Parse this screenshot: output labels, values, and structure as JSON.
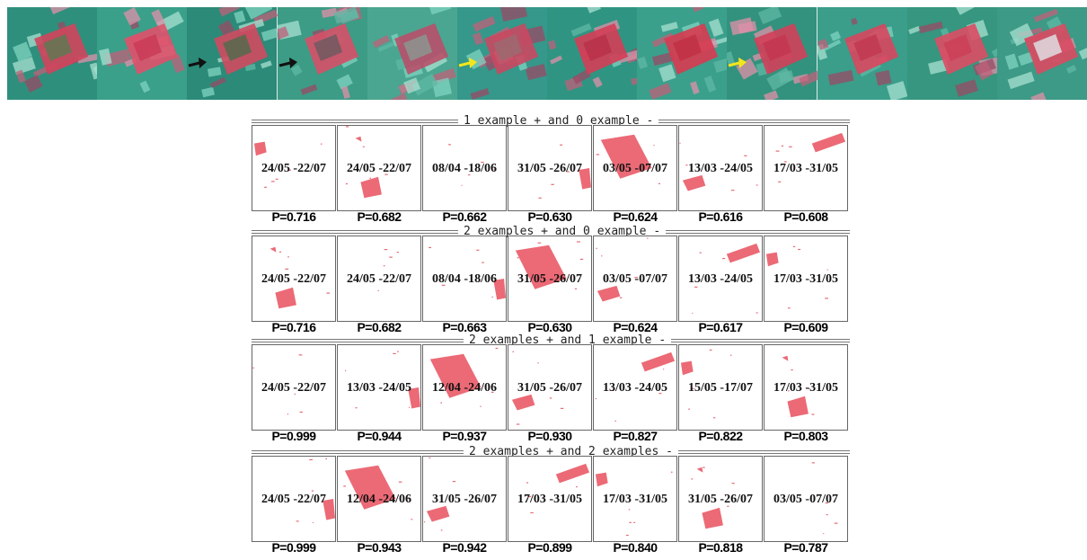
{
  "strip": {
    "frames": [
      {
        "bg": "#2f8f7d",
        "a": "#d2445c",
        "b": "#5a7a52",
        "arrow": null
      },
      {
        "bg": "#3aa08a",
        "a": "#e0506a",
        "b": "#c83a55",
        "arrow": null
      },
      {
        "bg": "#2c8a78",
        "a": "#cf4a60",
        "b": "#4f6b4a",
        "arrow": "black"
      },
      {
        "bg": "#3d9c86",
        "a": "#d65068",
        "b": "#6a5a60",
        "arrow": "black"
      },
      {
        "bg": "#4aa690",
        "a": "#b8506a",
        "b": "#8a9a92",
        "arrow": null
      },
      {
        "bg": "#35988a",
        "a": "#c94860",
        "b": "#9a6a70",
        "arrow": "yellow"
      },
      {
        "bg": "#2f9582",
        "a": "#d43d55",
        "b": "#b83048",
        "arrow": null
      },
      {
        "bg": "#3aa08c",
        "a": "#d83a50",
        "b": "#c03045",
        "arrow": null
      },
      {
        "bg": "#33927e",
        "a": "#d2405a",
        "b": "#c53550",
        "arrow": "yellow"
      },
      {
        "bg": "#3a9e8a",
        "a": "#d8465e",
        "b": "#c0384f",
        "arrow": null
      },
      {
        "bg": "#36967f",
        "a": "#dc4c64",
        "b": "#cc3e56",
        "arrow": null
      },
      {
        "bg": "#3c9a86",
        "a": "#da4a62",
        "b": "#e0e6e8",
        "arrow": null
      }
    ]
  },
  "sections": [
    {
      "header": "1 example  + and 0 example  -",
      "thumbs": [
        {
          "date": "24/05 -22/07",
          "p": "P=0.716"
        },
        {
          "date": "24/05 -22/07",
          "p": "P=0.682"
        },
        {
          "date": "08/04 -18/06",
          "p": "P=0.662"
        },
        {
          "date": "31/05 -26/07",
          "p": "P=0.630"
        },
        {
          "date": "03/05 -07/07",
          "p": "P=0.624"
        },
        {
          "date": "13/03 -24/05",
          "p": "P=0.616"
        },
        {
          "date": "17/03 -31/05",
          "p": "P=0.608"
        }
      ]
    },
    {
      "header": "2 examples + and 0 example  -",
      "thumbs": [
        {
          "date": "24/05 -22/07",
          "p": "P=0.716"
        },
        {
          "date": "24/05 -22/07",
          "p": "P=0.682"
        },
        {
          "date": "08/04 -18/06",
          "p": "P=0.663"
        },
        {
          "date": "31/05 -26/07",
          "p": "P=0.630"
        },
        {
          "date": "03/05 -07/07",
          "p": "P=0.624"
        },
        {
          "date": "13/03 -24/05",
          "p": "P=0.617"
        },
        {
          "date": "17/03 -31/05",
          "p": "P=0.609"
        }
      ]
    },
    {
      "header": "2 examples + and 1 example  -",
      "thumbs": [
        {
          "date": "24/05 -22/07",
          "p": "P=0.999"
        },
        {
          "date": "13/03 -24/05",
          "p": "P=0.944"
        },
        {
          "date": "12/04 -24/06",
          "p": "P=0.937"
        },
        {
          "date": "31/05 -26/07",
          "p": "P=0.930"
        },
        {
          "date": "13/03 -24/05",
          "p": "P=0.827"
        },
        {
          "date": "15/05 -17/07",
          "p": "P=0.822"
        },
        {
          "date": "17/03 -31/05",
          "p": "P=0.803"
        }
      ]
    },
    {
      "header": "2 examples + and 2 examples -",
      "thumbs": [
        {
          "date": "24/05 -22/07",
          "p": "P=0.999"
        },
        {
          "date": "12/04 -24/06",
          "p": "P=0.943"
        },
        {
          "date": "31/05 -26/07",
          "p": "P=0.942"
        },
        {
          "date": "17/03 -31/05",
          "p": "P=0.899"
        },
        {
          "date": "17/03 -31/05",
          "p": "P=0.840"
        },
        {
          "date": "31/05 -26/07",
          "p": "P=0.818"
        },
        {
          "date": "03/05 -07/07",
          "p": "P=0.787"
        }
      ]
    }
  ]
}
